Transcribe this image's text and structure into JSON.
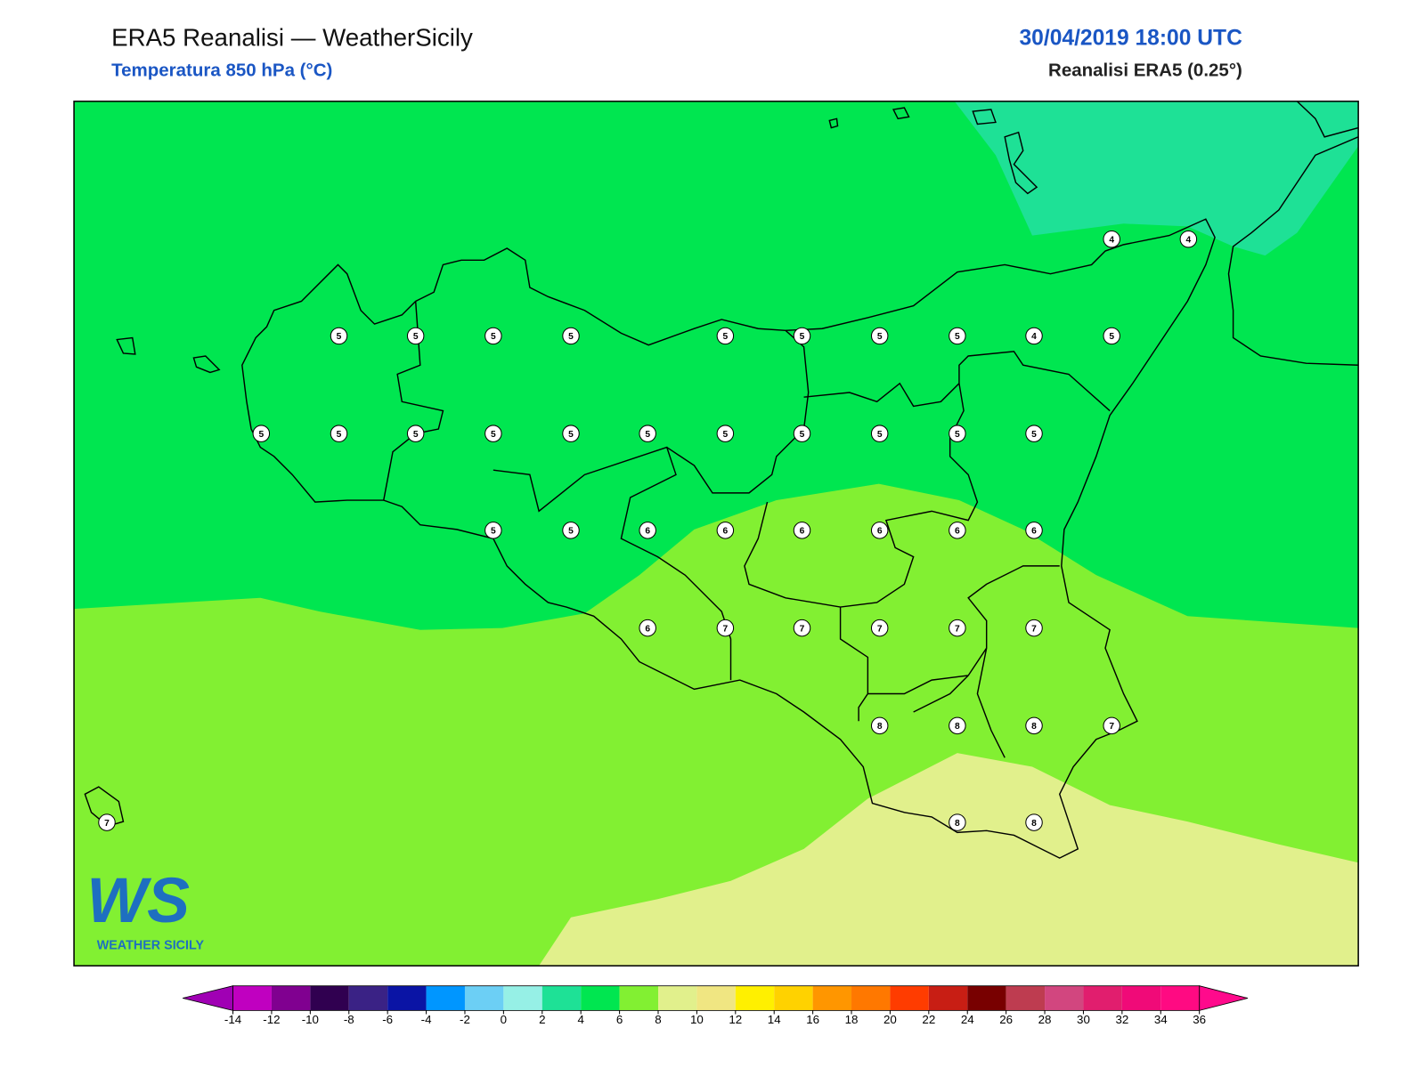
{
  "header": {
    "title": "ERA5 Reanalisi — WeatherSicily",
    "subtitle": "Temperatura 850 hPa (°C)",
    "date": "30/04/2019 18:00 UTC",
    "source": "Reanalisi ERA5 (0.25°)"
  },
  "stations": [
    4,
    4,
    5,
    5,
    5,
    5,
    5,
    5,
    5,
    5,
    4,
    5,
    5,
    5,
    5,
    5,
    5,
    5,
    5,
    5,
    5,
    5,
    5,
    5,
    5,
    6,
    6,
    6,
    6,
    6,
    6,
    6,
    7,
    7,
    7,
    7,
    7,
    8,
    8,
    8,
    7,
    7,
    8,
    8
  ],
  "colorbar": {
    "ticks": [
      -14,
      -12,
      -10,
      -8,
      -6,
      -4,
      -2,
      0,
      2,
      4,
      6,
      8,
      10,
      12,
      14,
      16,
      18,
      20,
      22,
      24,
      26,
      28,
      30,
      32,
      34,
      36
    ],
    "colors": [
      "#c000c0",
      "#800090",
      "#300050",
      "#3a2285",
      "#0a14a5",
      "#0096ff",
      "#6ccff5",
      "#96f0e6",
      "#1ee196",
      "#00e650",
      "#82f032",
      "#e1f08c",
      "#f0e682",
      "#fff000",
      "#ffd200",
      "#ff9600",
      "#ff7800",
      "#ff3c00",
      "#c81e14",
      "#780000",
      "#be3c50",
      "#d2467f",
      "#e11e6e",
      "#f00a78",
      "#ff0a82"
    ],
    "extend_colors": [
      "#a000b4",
      "#ff0a8c"
    ]
  },
  "logo": {
    "mark": "WS",
    "caption": "WEATHER SICILY"
  }
}
